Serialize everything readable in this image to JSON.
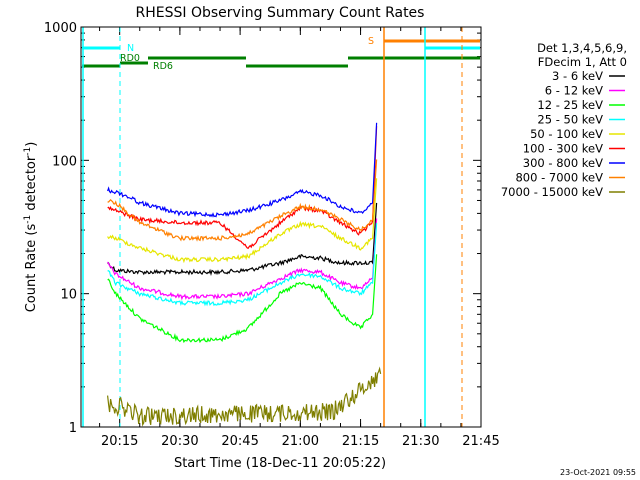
{
  "chart_data": {
    "type": "line",
    "title": "RHESSI Observing Summary Count Rates",
    "xlabel": "Start Time (18-Dec-11 20:05:22)",
    "ylabel_main": "Count Rate (s",
    "ylabel_sup1": "-1",
    "ylabel_mid": " detector",
    "ylabel_sup2": "-1",
    "ylabel_end": ")",
    "y_scale": "log",
    "ylim": [
      1,
      1000
    ],
    "y_ticks": [
      {
        "v": 1,
        "label": "1"
      },
      {
        "v": 10,
        "label": "10"
      },
      {
        "v": 100,
        "label": "100"
      },
      {
        "v": 1000,
        "label": "1000"
      }
    ],
    "xlim": [
      "20:05:22",
      "21:45:00"
    ],
    "x_ticks": [
      {
        "t": "20:15",
        "label": "20:15"
      },
      {
        "t": "20:30",
        "label": "20:30"
      },
      {
        "t": "20:45",
        "label": "20:45"
      },
      {
        "t": "21:00",
        "label": "21:00"
      },
      {
        "t": "21:15",
        "label": "21:15"
      },
      {
        "t": "21:30",
        "label": "21:30"
      },
      {
        "t": "21:45",
        "label": "21:45"
      }
    ],
    "legend_header": [
      "Det 1,3,4,5,6,9,",
      "FDecim 1, Att 0"
    ],
    "legend_position": "right",
    "series": [
      {
        "name": "3 - 6 keV",
        "color": "#000000",
        "points": [
          [
            "20:12",
            "17"
          ],
          [
            "20:14",
            "15"
          ],
          [
            "20:20",
            "14.5"
          ],
          [
            "20:30",
            "14.5"
          ],
          [
            "20:40",
            "14.5"
          ],
          [
            "20:47",
            "15"
          ],
          [
            "20:55",
            "17"
          ],
          [
            "21:00",
            "19"
          ],
          [
            "21:05",
            "18.5"
          ],
          [
            "21:10",
            "17"
          ],
          [
            "21:15",
            "17"
          ],
          [
            "21:18",
            "17"
          ]
        ]
      },
      {
        "name": "6 - 12 keV",
        "color": "#ff00ff",
        "points": [
          [
            "20:12",
            "17"
          ],
          [
            "20:14",
            "14"
          ],
          [
            "20:20",
            "11"
          ],
          [
            "20:30",
            "9.5"
          ],
          [
            "20:40",
            "9.5"
          ],
          [
            "20:47",
            "10"
          ],
          [
            "20:55",
            "13"
          ],
          [
            "21:00",
            "15"
          ],
          [
            "21:05",
            "14.5"
          ],
          [
            "21:10",
            "12"
          ],
          [
            "21:15",
            "11"
          ],
          [
            "21:18",
            "13"
          ]
        ]
      },
      {
        "name": "12 - 25 keV",
        "color": "#00ff00",
        "points": [
          [
            "20:12",
            "13"
          ],
          [
            "20:14",
            "10"
          ],
          [
            "20:20",
            "6.5"
          ],
          [
            "20:30",
            "4.5"
          ],
          [
            "20:40",
            "4.5"
          ],
          [
            "20:47",
            "5.5"
          ],
          [
            "20:55",
            "10"
          ],
          [
            "21:00",
            "12"
          ],
          [
            "21:05",
            "11"
          ],
          [
            "21:10",
            "7"
          ],
          [
            "21:15",
            "5.5"
          ],
          [
            "21:18",
            "7"
          ]
        ]
      },
      {
        "name": "25 - 50 keV",
        "color": "#00ffff",
        "points": [
          [
            "20:12",
            "15"
          ],
          [
            "20:14",
            "12"
          ],
          [
            "20:20",
            "10"
          ],
          [
            "20:30",
            "8.5"
          ],
          [
            "20:40",
            "8.5"
          ],
          [
            "20:47",
            "9"
          ],
          [
            "20:55",
            "12"
          ],
          [
            "21:00",
            "14"
          ],
          [
            "21:05",
            "13.5"
          ],
          [
            "21:10",
            "11"
          ],
          [
            "21:15",
            "10"
          ],
          [
            "21:18",
            "12"
          ]
        ]
      },
      {
        "name": "50 - 100 keV",
        "color": "#e6e600",
        "points": [
          [
            "20:12",
            "27"
          ],
          [
            "20:14",
            "26"
          ],
          [
            "20:20",
            "22"
          ],
          [
            "20:30",
            "18"
          ],
          [
            "20:40",
            "18"
          ],
          [
            "20:47",
            "19"
          ],
          [
            "20:55",
            "28"
          ],
          [
            "21:00",
            "33"
          ],
          [
            "21:05",
            "32"
          ],
          [
            "21:10",
            "26"
          ],
          [
            "21:15",
            "22"
          ],
          [
            "21:18",
            "26"
          ]
        ]
      },
      {
        "name": "100 - 300 keV",
        "color": "#ff0000",
        "points": [
          [
            "20:12",
            "44"
          ],
          [
            "20:14",
            "42"
          ],
          [
            "20:18",
            "38"
          ],
          [
            "20:20",
            "36"
          ],
          [
            "20:30",
            "34"
          ],
          [
            "20:40",
            "34"
          ],
          [
            "20:47",
            "22"
          ],
          [
            "20:55",
            "34"
          ],
          [
            "21:00",
            "44"
          ],
          [
            "21:05",
            "42"
          ],
          [
            "21:10",
            "34"
          ],
          [
            "21:15",
            "28"
          ],
          [
            "21:18",
            "35"
          ]
        ]
      },
      {
        "name": "300 - 800 keV",
        "color": "#0000ff",
        "points": [
          [
            "20:12",
            "60"
          ],
          [
            "20:14",
            "58"
          ],
          [
            "20:18",
            "52"
          ],
          [
            "20:20",
            "48"
          ],
          [
            "20:30",
            "40"
          ],
          [
            "20:40",
            "39"
          ],
          [
            "20:47",
            "42"
          ],
          [
            "20:55",
            "50"
          ],
          [
            "21:00",
            "58"
          ],
          [
            "21:05",
            "55"
          ],
          [
            "21:10",
            "45"
          ],
          [
            "21:15",
            "40"
          ],
          [
            "21:18",
            "48"
          ]
        ]
      },
      {
        "name": "800 - 7000 keV",
        "color": "#ff8000",
        "points": [
          [
            "20:12",
            "50"
          ],
          [
            "20:14",
            "48"
          ],
          [
            "20:20",
            "34"
          ],
          [
            "20:30",
            "26"
          ],
          [
            "20:40",
            "26"
          ],
          [
            "20:47",
            "28"
          ],
          [
            "20:55",
            "38"
          ],
          [
            "21:00",
            "45"
          ],
          [
            "21:05",
            "43"
          ],
          [
            "21:10",
            "36"
          ],
          [
            "21:15",
            "30"
          ],
          [
            "21:18",
            "36"
          ]
        ]
      },
      {
        "name": "7000 - 15000 keV",
        "color": "#7f7f00",
        "points": [
          [
            "20:12",
            "1.5"
          ],
          [
            "20:16",
            "1.4"
          ],
          [
            "20:20",
            "1.2"
          ],
          [
            "21:08",
            "1.3"
          ],
          [
            "21:20",
            "2.5"
          ]
        ]
      }
    ],
    "flags": [
      {
        "label": "N",
        "color": "#00ffff"
      },
      {
        "label": "RD0",
        "color": "#007f00"
      },
      {
        "label": "RD6",
        "color": "#007f00"
      },
      {
        "label": "S",
        "color": "#ff8000"
      }
    ]
  },
  "timestamp": "23-Oct-2021 09:55"
}
